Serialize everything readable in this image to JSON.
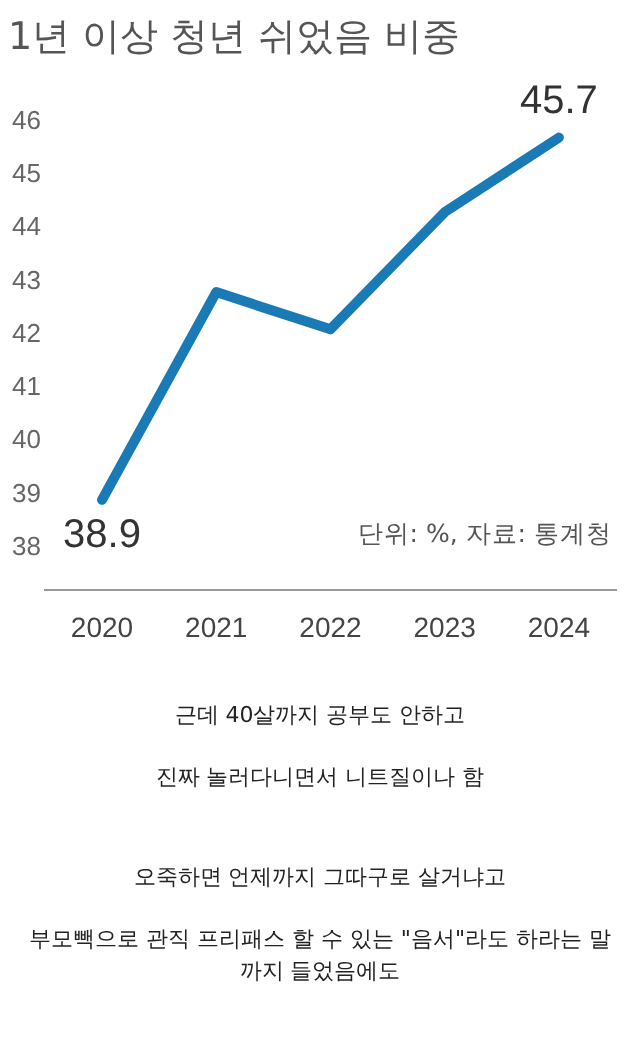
{
  "chart_data": {
    "type": "line",
    "title": "1년 이상 청년 쉬었음 비중",
    "categories": [
      "2020",
      "2021",
      "2022",
      "2023",
      "2024"
    ],
    "series": [
      {
        "color": "#1a7ab5",
        "values": [
          38.9,
          42.8,
          42.1,
          44.3,
          45.7
        ],
        "value_labels": [
          "38.9",
          null,
          null,
          null,
          "45.7"
        ]
      }
    ],
    "ylim": [
      37.2,
      46
    ],
    "yticks": [
      38,
      39,
      40,
      41,
      42,
      43,
      44,
      45,
      46
    ],
    "grid": false,
    "legend": false,
    "marker": "none",
    "line_style": "solid",
    "annotations": [
      "단위: %, 자료: 통계청",
      "근데 40살까지 공부도 안하고",
      "진짜 놀러다니면서 니트질이나 함",
      "오죽하면 언제까지 그따구로 살거냐고",
      "부모빽으로 관직 프리패스 할 수 있는 \"음서\"라도 하라는 말까지 들었음에도"
    ]
  }
}
